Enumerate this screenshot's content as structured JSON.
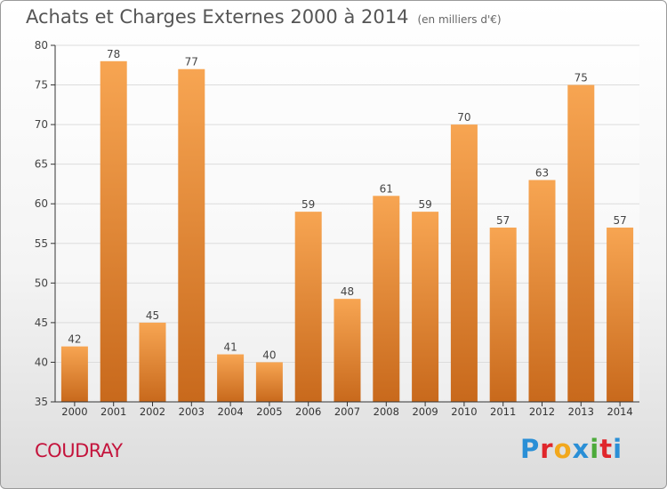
{
  "header": {
    "title": "Achats et Charges Externes 2000 à 2014",
    "subtitle": "(en milliers d'€)"
  },
  "footer": {
    "commune": "COUDRAY",
    "brand": "Proxiti",
    "brand_colors": [
      "#2a8fd6",
      "#e0262b",
      "#f2a81d",
      "#2a8fd6",
      "#4caa3a",
      "#e0262b",
      "#2a8fd6"
    ]
  },
  "colors": {
    "bar_top": "#f7a552",
    "bar_bottom": "#c8691c",
    "axis": "#333333",
    "grid": "#dcdcdc"
  },
  "chart_data": {
    "type": "bar",
    "categories": [
      "2000",
      "2001",
      "2002",
      "2003",
      "2004",
      "2005",
      "2006",
      "2007",
      "2008",
      "2009",
      "2010",
      "2011",
      "2012",
      "2013",
      "2014"
    ],
    "values": [
      42,
      78,
      45,
      77,
      41,
      40,
      59,
      48,
      61,
      59,
      70,
      57,
      63,
      75,
      57
    ],
    "ylim": [
      35,
      80
    ],
    "yticks": [
      35,
      40,
      45,
      50,
      55,
      60,
      65,
      70,
      75,
      80
    ],
    "grid": true,
    "data_labels": true
  }
}
